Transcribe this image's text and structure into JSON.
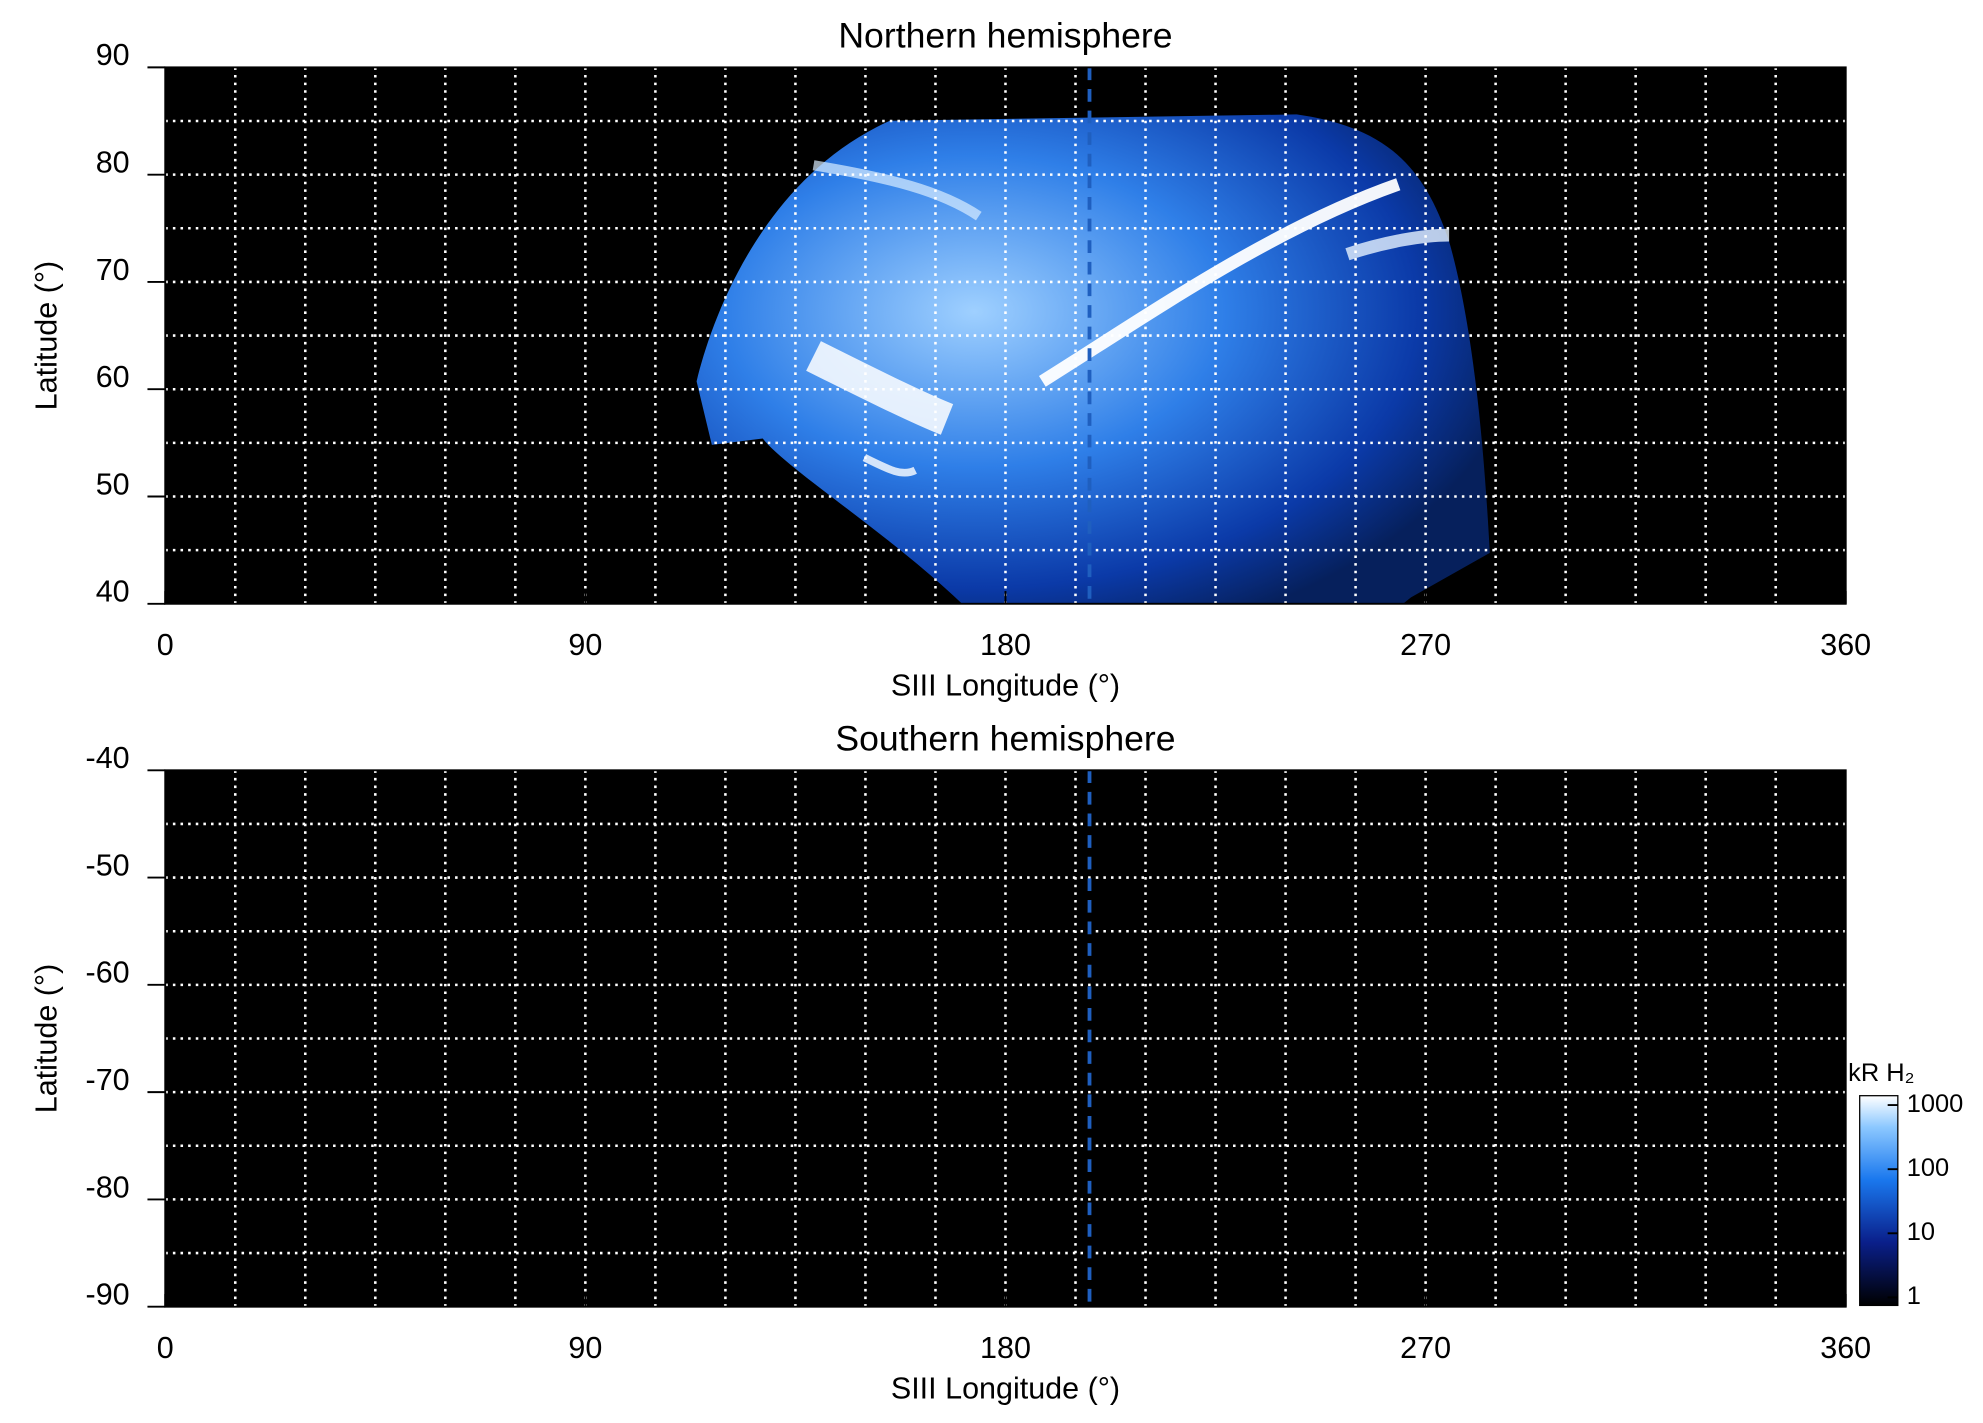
{
  "chart_data": [
    {
      "type": "heatmap",
      "title": "Northern hemisphere",
      "xlabel": "SIII Longitude (°)",
      "ylabel": "Latitude (°)",
      "xlim": [
        0,
        360
      ],
      "xticks": [
        0,
        90,
        180,
        270,
        360
      ],
      "ylim": [
        40,
        90
      ],
      "yticks": [
        40,
        50,
        60,
        70,
        80,
        90
      ],
      "xgrid": [
        15,
        30,
        45,
        60,
        75,
        90,
        105,
        120,
        135,
        150,
        165,
        180,
        195,
        210,
        225,
        240,
        255,
        270,
        285,
        300,
        315,
        330,
        345
      ],
      "ygrid": [
        45,
        50,
        55,
        60,
        65,
        70,
        75,
        80,
        85
      ],
      "reference_line_x": 198,
      "reference_color": "#1f5fbf",
      "grid": true
    },
    {
      "type": "heatmap",
      "title": "Southern hemisphere",
      "xlabel": "SIII Longitude (°)",
      "ylabel": "Latitude (°)",
      "xlim": [
        0,
        360
      ],
      "xticks": [
        0,
        90,
        180,
        270,
        360
      ],
      "ylim": [
        -90,
        -40
      ],
      "yticks": [
        -90,
        -80,
        -70,
        -60,
        -50,
        -40
      ],
      "xgrid": [
        15,
        30,
        45,
        60,
        75,
        90,
        105,
        120,
        135,
        150,
        165,
        180,
        195,
        210,
        225,
        240,
        255,
        270,
        285,
        300,
        315,
        330,
        345
      ],
      "ygrid": [
        -85,
        -80,
        -75,
        -70,
        -65,
        -60,
        -55,
        -50,
        -45
      ],
      "reference_line_x": 198,
      "reference_color": "#1f5fbf",
      "grid": true,
      "colorbar": {
        "label": "kR H₂",
        "log": true,
        "lim": [
          0.75,
          1400
        ],
        "ticks": [
          1,
          10,
          100,
          1000
        ]
      }
    }
  ]
}
